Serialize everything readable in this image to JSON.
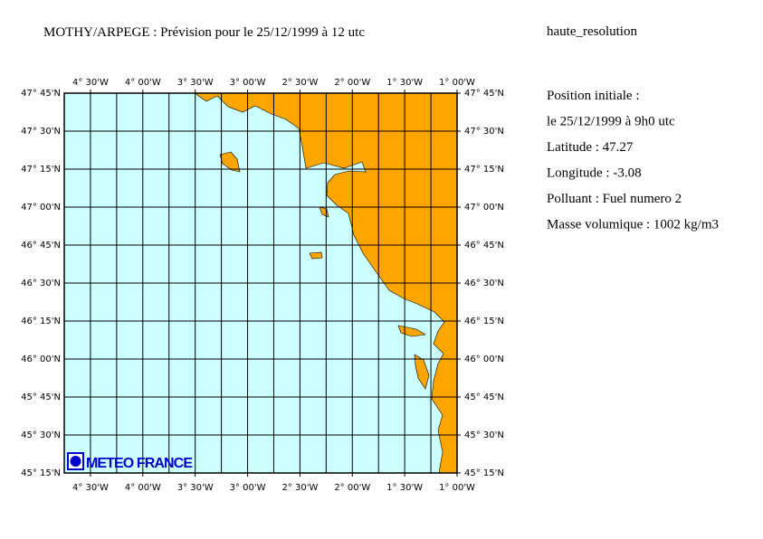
{
  "header": {
    "title": "MOTHY/ARPEGE : Prévision pour le 25/12/1999 à 12 utc",
    "resolution": "haute_resolution"
  },
  "map": {
    "lon_range": [
      -4.75,
      -1.0
    ],
    "lat_range": [
      45.25,
      47.75
    ],
    "grid_step": 0.25,
    "land_color": "#ffa500",
    "sea_color": "#ccffff",
    "lon_ticks": [
      {
        "value": -4.5,
        "label": "4° 30'W"
      },
      {
        "value": -4.0,
        "label": "4° 00'W"
      },
      {
        "value": -3.5,
        "label": "3° 30'W"
      },
      {
        "value": -3.0,
        "label": "3° 00'W"
      },
      {
        "value": -2.5,
        "label": "2° 30'W"
      },
      {
        "value": -2.0,
        "label": "2° 00'W"
      },
      {
        "value": -1.5,
        "label": "1° 30'W"
      },
      {
        "value": -1.0,
        "label": "1° 00'W"
      }
    ],
    "lat_ticks": [
      {
        "value": 45.25,
        "label": "45° 15'N"
      },
      {
        "value": 45.5,
        "label": "45° 30'N"
      },
      {
        "value": 45.75,
        "label": "45° 45'N"
      },
      {
        "value": 46.0,
        "label": "46° 00'N"
      },
      {
        "value": 46.25,
        "label": "46° 15'N"
      },
      {
        "value": 46.5,
        "label": "46° 30'N"
      },
      {
        "value": 46.75,
        "label": "46° 45'N"
      },
      {
        "value": 47.0,
        "label": "47° 00'N"
      },
      {
        "value": 47.25,
        "label": "47° 15'N"
      },
      {
        "value": 47.5,
        "label": "47° 30'N"
      },
      {
        "value": 47.75,
        "label": "47° 45'N"
      }
    ]
  },
  "logo": "METEO FRANCE",
  "info": [
    "Position initiale :",
    "le 25/12/1999 à 9h0 utc",
    "Latitude : 47.27",
    "Longitude : -3.08",
    "Polluant : Fuel numero 2",
    "Masse volumique : 1002 kg/m3"
  ]
}
